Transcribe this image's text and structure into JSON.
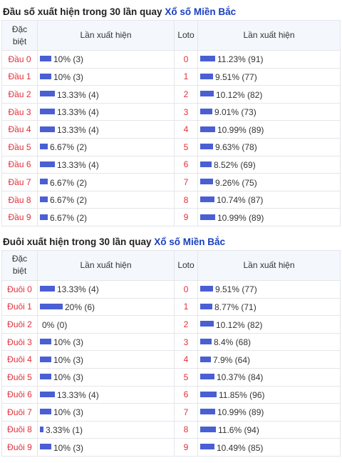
{
  "section1": {
    "title_prefix": "Đầu số xuất hiện trong 30 lần quay",
    "title_link": "Xổ số Miền Bắc",
    "headers": {
      "dac": "Đặc",
      "biet": "biệt",
      "lan": "Lần xuất hiện",
      "loto": "Loto",
      "lan2": "Lần xuất hiện"
    },
    "rows": [
      {
        "label": "Đầu 0",
        "pct": 10,
        "text": "10% (3)",
        "loto": "0",
        "lpct": 11.23,
        "ltext": "11.23% (91)"
      },
      {
        "label": "Đầu 1",
        "pct": 10,
        "text": "10% (3)",
        "loto": "1",
        "lpct": 9.51,
        "ltext": "9.51% (77)"
      },
      {
        "label": "Đầu 2",
        "pct": 13.33,
        "text": "13.33% (4)",
        "loto": "2",
        "lpct": 10.12,
        "ltext": "10.12% (82)"
      },
      {
        "label": "Đầu 3",
        "pct": 13.33,
        "text": "13.33% (4)",
        "loto": "3",
        "lpct": 9.01,
        "ltext": "9.01% (73)"
      },
      {
        "label": "Đầu 4",
        "pct": 13.33,
        "text": "13.33% (4)",
        "loto": "4",
        "lpct": 10.99,
        "ltext": "10.99% (89)"
      },
      {
        "label": "Đầu 5",
        "pct": 6.67,
        "text": "6.67% (2)",
        "loto": "5",
        "lpct": 9.63,
        "ltext": "9.63% (78)"
      },
      {
        "label": "Đầu 6",
        "pct": 13.33,
        "text": "13.33% (4)",
        "loto": "6",
        "lpct": 8.52,
        "ltext": "8.52% (69)"
      },
      {
        "label": "Đầu 7",
        "pct": 6.67,
        "text": "6.67% (2)",
        "loto": "7",
        "lpct": 9.26,
        "ltext": "9.26% (75)"
      },
      {
        "label": "Đầu 8",
        "pct": 6.67,
        "text": "6.67% (2)",
        "loto": "8",
        "lpct": 10.74,
        "ltext": "10.74% (87)"
      },
      {
        "label": "Đầu 9",
        "pct": 6.67,
        "text": "6.67% (2)",
        "loto": "9",
        "lpct": 10.99,
        "ltext": "10.99% (89)"
      }
    ]
  },
  "section2": {
    "title_prefix": "Đuôi xuất hiện trong 30 lần quay",
    "title_link": "Xổ số Miền Bắc",
    "headers": {
      "dac": "Đặc",
      "biet": "biệt",
      "lan": "Lần xuất hiện",
      "loto": "Loto",
      "lan2": "Lần xuất hiện"
    },
    "rows": [
      {
        "label": "Đuôi 0",
        "pct": 13.33,
        "text": "13.33% (4)",
        "loto": "0",
        "lpct": 9.51,
        "ltext": "9.51% (77)"
      },
      {
        "label": "Đuôi 1",
        "pct": 20,
        "text": "20% (6)",
        "loto": "1",
        "lpct": 8.77,
        "ltext": "8.77% (71)"
      },
      {
        "label": "Đuôi 2",
        "pct": 0,
        "text": "0% (0)",
        "loto": "2",
        "lpct": 10.12,
        "ltext": "10.12% (82)"
      },
      {
        "label": "Đuôi 3",
        "pct": 10,
        "text": "10% (3)",
        "loto": "3",
        "lpct": 8.4,
        "ltext": "8.4% (68)"
      },
      {
        "label": "Đuôi 4",
        "pct": 10,
        "text": "10% (3)",
        "loto": "4",
        "lpct": 7.9,
        "ltext": "7.9% (64)"
      },
      {
        "label": "Đuôi 5",
        "pct": 10,
        "text": "10% (3)",
        "loto": "5",
        "lpct": 10.37,
        "ltext": "10.37% (84)"
      },
      {
        "label": "Đuôi 6",
        "pct": 13.33,
        "text": "13.33% (4)",
        "loto": "6",
        "lpct": 11.85,
        "ltext": "11.85% (96)"
      },
      {
        "label": "Đuôi 7",
        "pct": 10,
        "text": "10% (3)",
        "loto": "7",
        "lpct": 10.99,
        "ltext": "10.99% (89)"
      },
      {
        "label": "Đuôi 8",
        "pct": 3.33,
        "text": "3.33% (1)",
        "loto": "8",
        "lpct": 11.6,
        "ltext": "11.6% (94)"
      },
      {
        "label": "Đuôi 9",
        "pct": 10,
        "text": "10% (3)",
        "loto": "9",
        "lpct": 10.49,
        "ltext": "10.49% (85)"
      }
    ]
  },
  "colors": {
    "bar": "#4a5fd3",
    "label_red": "#e0303a",
    "link_blue": "#1a3fbf",
    "header_bg": "#f4f8fc"
  }
}
